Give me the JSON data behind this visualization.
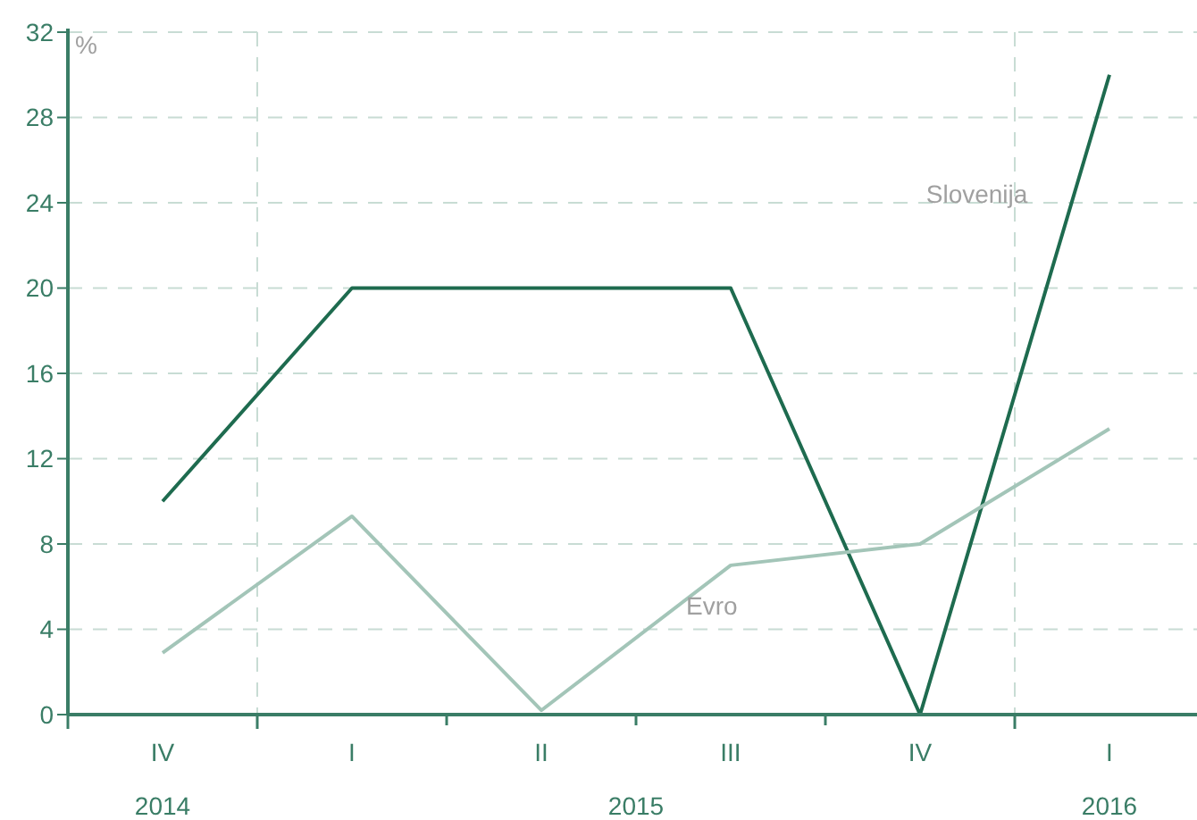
{
  "chart_data": {
    "type": "line",
    "ylabel": "%",
    "categories": [
      "IV",
      "I",
      "II",
      "III",
      "IV",
      "I"
    ],
    "series": [
      {
        "name": "Slovenija",
        "color": "#1e6b4f",
        "values": [
          10,
          20,
          20,
          20,
          0,
          30
        ]
      },
      {
        "name": "Evro",
        "color": "#a3c5b8",
        "values": [
          2.9,
          9.3,
          0.2,
          7,
          8,
          13.4
        ]
      }
    ],
    "ylim": [
      0,
      32
    ],
    "yticks": [
      0,
      4,
      8,
      12,
      16,
      20,
      24,
      28,
      32
    ],
    "grid": "y",
    "legend": false,
    "marker": "none",
    "line_style": "solid",
    "annotations": [
      "2014",
      "2015",
      "2016"
    ]
  }
}
